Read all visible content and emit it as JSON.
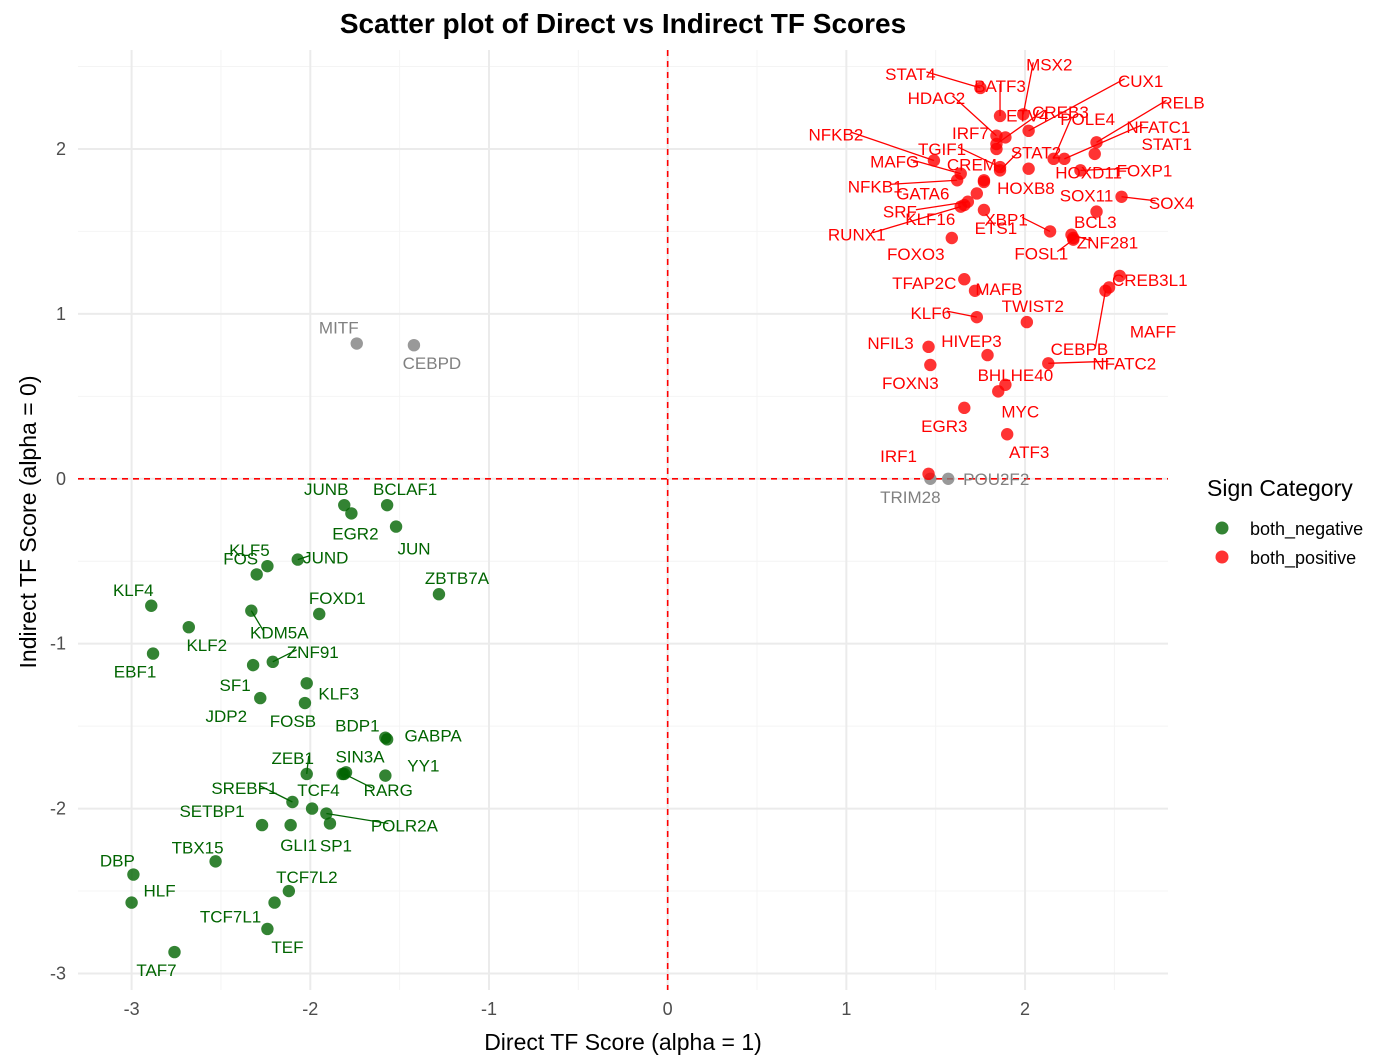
{
  "chart_data": {
    "type": "scatter",
    "title": "Scatter plot of Direct vs Indirect TF Scores",
    "xlabel": "Direct TF Score (alpha = 1)",
    "ylabel": "Indirect TF Score (alpha = 0)",
    "xlim": [
      -3.3,
      2.8
    ],
    "ylim": [
      -3.1,
      2.6
    ],
    "x_ticks": [
      -3,
      -2,
      -1,
      0,
      1,
      2
    ],
    "y_ticks": [
      -3,
      -2,
      -1,
      0,
      1,
      2
    ],
    "x_tick_labels": [
      "-3",
      "-2",
      "-1",
      "0",
      "1",
      "2"
    ],
    "y_tick_labels": [
      "-3",
      "-2",
      "-1",
      "0",
      "1",
      "2"
    ],
    "reference_lines": {
      "x": 0,
      "y": 0,
      "color": "#ff0000",
      "style": "dashed"
    },
    "grid": true,
    "legend": {
      "title": "Sign Category",
      "placement": "right",
      "entries": [
        {
          "label": "both_negative",
          "color": "#006400"
        },
        {
          "label": "both_positive",
          "color": "#ff0000"
        }
      ]
    },
    "colors": {
      "both_negative": "#006400",
      "both_positive": "#ff0000",
      "other": "#808080"
    },
    "points": [
      {
        "label": "MITF",
        "x": -1.74,
        "y": 0.82,
        "cat": "other"
      },
      {
        "label": "CEBPD",
        "x": -1.42,
        "y": 0.81,
        "cat": "other"
      },
      {
        "label": "TRIM28",
        "x": 1.47,
        "y": 0.0,
        "cat": "other"
      },
      {
        "label": "POU2F2",
        "x": 1.57,
        "y": 0.0,
        "cat": "other"
      },
      {
        "label": "JUNB",
        "x": -1.81,
        "y": -0.16,
        "cat": "both_negative"
      },
      {
        "label": "BCLAF1",
        "x": -1.57,
        "y": -0.16,
        "cat": "both_negative"
      },
      {
        "label": "EGR2",
        "x": -1.77,
        "y": -0.21,
        "cat": "both_negative"
      },
      {
        "label": "JUN",
        "x": -1.52,
        "y": -0.29,
        "cat": "both_negative"
      },
      {
        "label": "JUND",
        "x": -2.07,
        "y": -0.49,
        "cat": "both_negative"
      },
      {
        "label": "KLF5",
        "x": -2.24,
        "y": -0.53,
        "cat": "both_negative"
      },
      {
        "label": "FOS",
        "x": -2.3,
        "y": -0.58,
        "cat": "both_negative"
      },
      {
        "label": "ZBTB7A",
        "x": -1.28,
        "y": -0.7,
        "cat": "both_negative"
      },
      {
        "label": "KLF4",
        "x": -2.89,
        "y": -0.77,
        "cat": "both_negative"
      },
      {
        "label": "KDM5A",
        "x": -2.33,
        "y": -0.8,
        "cat": "both_negative"
      },
      {
        "label": "FOXD1",
        "x": -1.95,
        "y": -0.82,
        "cat": "both_negative"
      },
      {
        "label": "KLF2",
        "x": -2.68,
        "y": -0.9,
        "cat": "both_negative"
      },
      {
        "label": "EBF1",
        "x": -2.88,
        "y": -1.06,
        "cat": "both_negative"
      },
      {
        "label": "ZNF91",
        "x": -2.21,
        "y": -1.11,
        "cat": "both_negative"
      },
      {
        "label": "SF1",
        "x": -2.32,
        "y": -1.13,
        "cat": "both_negative"
      },
      {
        "label": "KLF3",
        "x": -2.02,
        "y": -1.24,
        "cat": "both_negative"
      },
      {
        "label": "JDP2",
        "x": -2.28,
        "y": -1.33,
        "cat": "both_negative"
      },
      {
        "label": "FOSB",
        "x": -2.03,
        "y": -1.36,
        "cat": "both_negative"
      },
      {
        "label": "BDP1",
        "x": -1.58,
        "y": -1.57,
        "cat": "both_negative"
      },
      {
        "label": "GABPA",
        "x": -1.57,
        "y": -1.58,
        "cat": "both_negative"
      },
      {
        "label": "ZEB1",
        "x": -2.02,
        "y": -1.79,
        "cat": "both_negative"
      },
      {
        "label": "SIN3A",
        "x": -1.8,
        "y": -1.78,
        "cat": "both_negative"
      },
      {
        "label": "YY1",
        "x": -1.58,
        "y": -1.8,
        "cat": "both_negative"
      },
      {
        "label": "TCF4",
        "x": -1.82,
        "y": -1.79,
        "cat": "both_negative"
      },
      {
        "label": "RARG",
        "x": -1.81,
        "y": -1.79,
        "cat": "both_negative"
      },
      {
        "label": "SREBF1",
        "x": -2.1,
        "y": -1.96,
        "cat": "both_negative"
      },
      {
        "label": "POLR2A",
        "x": -1.91,
        "y": -2.03,
        "cat": "both_negative"
      },
      {
        "label": "SETBP1",
        "x": -2.27,
        "y": -2.1,
        "cat": "both_negative"
      },
      {
        "label": "GLI1",
        "x": -2.11,
        "y": -2.1,
        "cat": "both_negative"
      },
      {
        "label": "SP1",
        "x": -1.89,
        "y": -2.09,
        "cat": "both_negative"
      },
      {
        "label": "TBX15",
        "x": -2.53,
        "y": -2.32,
        "cat": "both_negative"
      },
      {
        "label": "DBP",
        "x": -2.99,
        "y": -2.4,
        "cat": "both_negative"
      },
      {
        "label": "TCF7L2",
        "x": -2.12,
        "y": -2.5,
        "cat": "both_negative"
      },
      {
        "label": "HLF",
        "x": -3.0,
        "y": -2.57,
        "cat": "both_negative"
      },
      {
        "label": "TCF7L1",
        "x": -2.2,
        "y": -2.57,
        "cat": "both_negative"
      },
      {
        "label": "TEF",
        "x": -2.24,
        "y": -2.73,
        "cat": "both_negative"
      },
      {
        "label": "TAF7",
        "x": -2.76,
        "y": -2.87,
        "cat": "both_negative"
      },
      {
        "label": "",
        "x": -1.99,
        "y": -2.0,
        "cat": "both_negative"
      },
      {
        "label": "STAT4",
        "x": 1.75,
        "y": 2.37,
        "cat": "both_positive"
      },
      {
        "label": "BATF3",
        "x": 1.86,
        "y": 2.2,
        "cat": "both_positive"
      },
      {
        "label": "ETV4",
        "x": 1.89,
        "y": 2.07,
        "cat": "both_positive"
      },
      {
        "label": "MSX2",
        "x": 1.99,
        "y": 2.21,
        "cat": "both_positive"
      },
      {
        "label": "CUX1",
        "x": 2.02,
        "y": 2.11,
        "cat": "both_positive"
      },
      {
        "label": "CREB3",
        "x": 1.84,
        "y": 2.03,
        "cat": "both_positive"
      },
      {
        "label": "RELB",
        "x": 2.4,
        "y": 2.04,
        "cat": "both_positive"
      },
      {
        "label": "HDAC2",
        "x": 1.84,
        "y": 2.08,
        "cat": "both_positive"
      },
      {
        "label": "IRF7",
        "x": 1.84,
        "y": 2.0,
        "cat": "both_positive"
      },
      {
        "label": "POLE4",
        "x": 2.16,
        "y": 1.94,
        "cat": "both_positive"
      },
      {
        "label": "NFATC1",
        "x": 2.22,
        "y": 1.94,
        "cat": "both_positive"
      },
      {
        "label": "TGIF1",
        "x": 1.86,
        "y": 1.89,
        "cat": "both_positive"
      },
      {
        "label": "STAT2",
        "x": 1.86,
        "y": 1.87,
        "cat": "both_positive"
      },
      {
        "label": "STAT1",
        "x": 2.39,
        "y": 1.97,
        "cat": "both_positive"
      },
      {
        "label": "NFKB2",
        "x": 1.49,
        "y": 1.93,
        "cat": "both_positive"
      },
      {
        "label": "CREM",
        "x": 1.77,
        "y": 1.81,
        "cat": "both_positive"
      },
      {
        "label": "HOXD11",
        "x": 2.02,
        "y": 1.88,
        "cat": "both_positive"
      },
      {
        "label": "FOXP1",
        "x": 2.31,
        "y": 1.87,
        "cat": "both_positive"
      },
      {
        "label": "MAFG",
        "x": 1.64,
        "y": 1.85,
        "cat": "both_positive"
      },
      {
        "label": "HOXB8",
        "x": 1.77,
        "y": 1.8,
        "cat": "both_positive"
      },
      {
        "label": "NFKB1",
        "x": 1.62,
        "y": 1.81,
        "cat": "both_positive"
      },
      {
        "label": "GATA6",
        "x": 1.73,
        "y": 1.73,
        "cat": "both_positive"
      },
      {
        "label": "SOX4",
        "x": 2.54,
        "y": 1.71,
        "cat": "both_positive"
      },
      {
        "label": "SRF",
        "x": 1.68,
        "y": 1.68,
        "cat": "both_positive"
      },
      {
        "label": "KLF16",
        "x": 1.66,
        "y": 1.66,
        "cat": "both_positive"
      },
      {
        "label": "ETS1",
        "x": 1.77,
        "y": 1.63,
        "cat": "both_positive"
      },
      {
        "label": "SOX11",
        "x": 2.4,
        "y": 1.62,
        "cat": "both_positive"
      },
      {
        "label": "RUNX1",
        "x": 1.64,
        "y": 1.65,
        "cat": "both_positive"
      },
      {
        "label": "ZNF281",
        "x": 2.26,
        "y": 1.48,
        "cat": "both_positive"
      },
      {
        "label": "FOXO3",
        "x": 1.59,
        "y": 1.46,
        "cat": "both_positive"
      },
      {
        "label": "XBP1",
        "x": 2.14,
        "y": 1.5,
        "cat": "both_positive"
      },
      {
        "label": "BCL3",
        "x": 2.27,
        "y": 1.46,
        "cat": "both_positive"
      },
      {
        "label": "TFAP2C",
        "x": 1.66,
        "y": 1.21,
        "cat": "both_positive"
      },
      {
        "label": "MAFB",
        "x": 1.72,
        "y": 1.14,
        "cat": "both_positive"
      },
      {
        "label": "FOSL1",
        "x": 2.27,
        "y": 1.45,
        "cat": "both_positive"
      },
      {
        "label": "CREB3L1",
        "x": 2.53,
        "y": 1.23,
        "cat": "both_positive"
      },
      {
        "label": "MAFF",
        "x": 2.47,
        "y": 1.16,
        "cat": "both_positive"
      },
      {
        "label": "CEBPB",
        "x": 2.45,
        "y": 1.14,
        "cat": "both_positive"
      },
      {
        "label": "KLF6",
        "x": 1.73,
        "y": 0.98,
        "cat": "both_positive"
      },
      {
        "label": "TWIST2",
        "x": 2.01,
        "y": 0.95,
        "cat": "both_positive"
      },
      {
        "label": "NFIL3",
        "x": 1.46,
        "y": 0.8,
        "cat": "both_positive"
      },
      {
        "label": "HIVEP3",
        "x": 1.79,
        "y": 0.75,
        "cat": "both_positive"
      },
      {
        "label": "FOXN3",
        "x": 1.47,
        "y": 0.69,
        "cat": "both_positive"
      },
      {
        "label": "NFATC2",
        "x": 2.13,
        "y": 0.7,
        "cat": "both_positive"
      },
      {
        "label": "BHLHE40",
        "x": 1.89,
        "y": 0.57,
        "cat": "both_positive"
      },
      {
        "label": "MYC",
        "x": 1.85,
        "y": 0.53,
        "cat": "both_positive"
      },
      {
        "label": "EGR3",
        "x": 1.66,
        "y": 0.43,
        "cat": "both_positive"
      },
      {
        "label": "ATF3",
        "x": 1.9,
        "y": 0.27,
        "cat": "both_positive"
      },
      {
        "label": "IRF1",
        "x": 1.46,
        "y": 0.03,
        "cat": "both_positive"
      }
    ]
  }
}
